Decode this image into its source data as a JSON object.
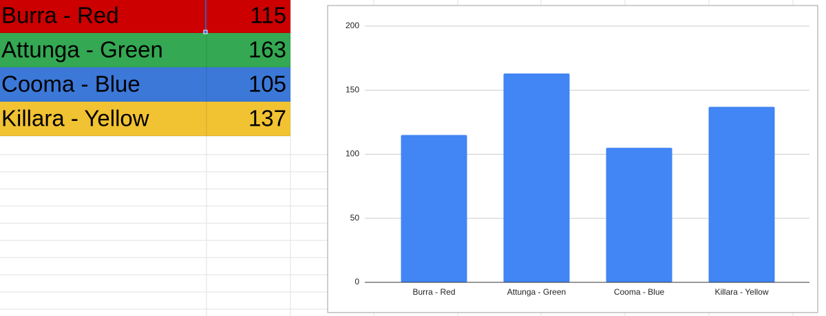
{
  "sheet": {
    "rows": [
      {
        "label": "Burra - Red",
        "value": 115,
        "color": "#cc0000"
      },
      {
        "label": "Attunga - Green",
        "value": 163,
        "color": "#34a853"
      },
      {
        "label": "Cooma - Blue",
        "value": 105,
        "color": "#3c78d8"
      },
      {
        "label": "Killara - Yellow",
        "value": 137,
        "color": "#f1c232"
      }
    ]
  },
  "chart_data": {
    "type": "bar",
    "categories": [
      "Burra - Red",
      "Attunga - Green",
      "Cooma - Blue",
      "Killara - Yellow"
    ],
    "values": [
      115,
      163,
      105,
      137
    ],
    "color": "#4285f4",
    "ylim": [
      0,
      200
    ],
    "yticks": [
      0,
      50,
      100,
      150,
      200
    ],
    "grid": true
  }
}
